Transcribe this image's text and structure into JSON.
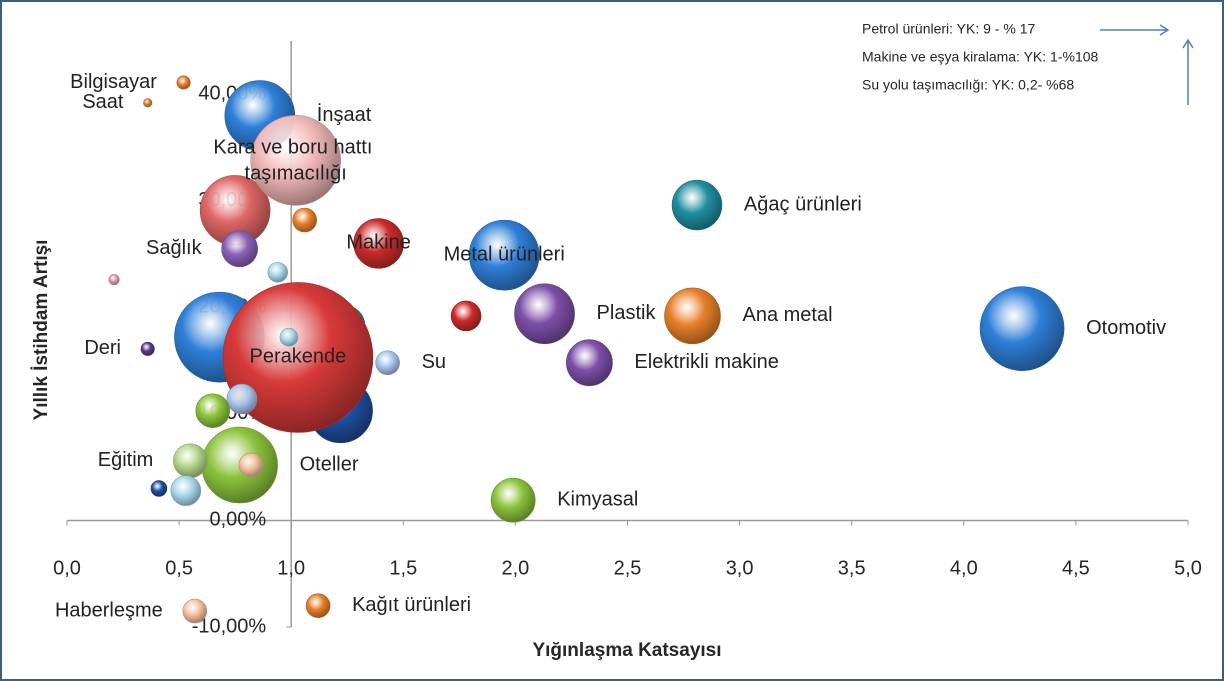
{
  "chart_data": {
    "type": "bubble",
    "xlabel": "Yığınlaşma Katsayısı",
    "ylabel": "Yıllık İstihdam Artışı",
    "annotations": [
      "Petrol ürünleri: YK: 9 - % 17",
      "Makine ve eşya kiralama:  YK: 1-%108",
      "Su yolu taşımacılığı:  YK: 0,2- %68"
    ],
    "xlim": [
      0,
      5
    ],
    "ylim": [
      -10,
      45
    ],
    "xticks": [
      {
        "value": 0,
        "label": "0,0"
      },
      {
        "value": 0.5,
        "label": "0,5"
      },
      {
        "value": 1,
        "label": "1,0"
      },
      {
        "value": 1.5,
        "label": "1,5"
      },
      {
        "value": 2,
        "label": "2,0"
      },
      {
        "value": 2.5,
        "label": "2,5"
      },
      {
        "value": 3,
        "label": "3,0"
      },
      {
        "value": 3.5,
        "label": "3,5"
      },
      {
        "value": 4,
        "label": "4,0"
      },
      {
        "value": 4.5,
        "label": "4,5"
      },
      {
        "value": 5,
        "label": "5,0"
      }
    ],
    "yticks": [
      {
        "value": -10,
        "label": "-10,00%"
      },
      {
        "value": 0,
        "label": "0,00%"
      },
      {
        "value": 10,
        "label": "10,00%"
      },
      {
        "value": 20,
        "label": "20,00%"
      },
      {
        "value": 30,
        "label": "30,00%"
      },
      {
        "value": 40,
        "label": "40,00%"
      }
    ],
    "labels": [
      "İnşaat",
      null,
      null,
      "Kara ve boru hattı taşımacılığı",
      "Bilgisayar",
      "Saat",
      "Sağlık",
      "Makine",
      "Metal ürünleri",
      "Ağaç ürünleri",
      null,
      null,
      null,
      null,
      null,
      "Perakende",
      null,
      null,
      "Plastik",
      "Ana metal",
      "Otomotiv",
      "Elektrikli makine",
      "Su",
      "Deri",
      null,
      null,
      "Oteller",
      null,
      "Eğitim",
      null,
      null,
      "Kimyasal",
      "Haberleşme",
      "Kağıt ürünleri"
    ],
    "x": [
      0.86,
      0.75,
      1.06,
      1.02,
      0.52,
      0.36,
      0.77,
      1.39,
      1.95,
      2.81,
      0.94,
      0.21,
      0.68,
      1.24,
      1.22,
      1.03,
      0.99,
      1.78,
      2.13,
      2.79,
      4.26,
      2.33,
      1.43,
      0.36,
      0.78,
      0.65,
      0.77,
      0.82,
      0.55,
      0.41,
      0.53,
      1.99,
      0.57,
      1.12
    ],
    "values": [
      38.0,
      29.1,
      28.2,
      33.8,
      41.1,
      39.2,
      25.5,
      26.0,
      24.9,
      29.6,
      23.3,
      22.6,
      17.2,
      18.3,
      10.3,
      15.3,
      17.2,
      19.2,
      19.4,
      19.2,
      18.0,
      14.8,
      14.8,
      16.1,
      11.4,
      10.3,
      5.2,
      5.2,
      5.6,
      3.0,
      2.8,
      1.9,
      -8.5,
      -8.0
    ],
    "sizes": [
      136,
      136,
      16,
      225,
      5,
      2,
      36,
      69,
      136,
      69,
      11,
      3,
      225,
      44,
      114,
      625,
      9,
      25,
      100,
      87,
      196,
      59,
      16,
      5,
      25,
      32,
      160,
      16,
      32,
      7,
      25,
      54,
      16,
      16
    ],
    "colors": [
      "#2f7fd8",
      "#e06666",
      "#e8802a",
      "#f2b9b9",
      "#e8802a",
      "#e8802a",
      "#8a62b8",
      "#cc2b2b",
      "#2f7fd8",
      "#1f8fa0",
      "#a8d8ec",
      "#e89aa8",
      "#2f7fd8",
      "#1f8fa0",
      "#1f4fa0",
      "#d93a3a",
      "#a8d8ec",
      "#cc2b2b",
      "#7d4fa8",
      "#e8802a",
      "#2f7fd8",
      "#7d4fa8",
      "#a9c7ef",
      "#5a3a88",
      "#a9c7ef",
      "#8cc43c",
      "#8cc43c",
      "#f7c2a0",
      "#b5d98a",
      "#1f4fa0",
      "#a8d8ec",
      "#8cc43c",
      "#f7c2a0",
      "#e8802a"
    ]
  }
}
